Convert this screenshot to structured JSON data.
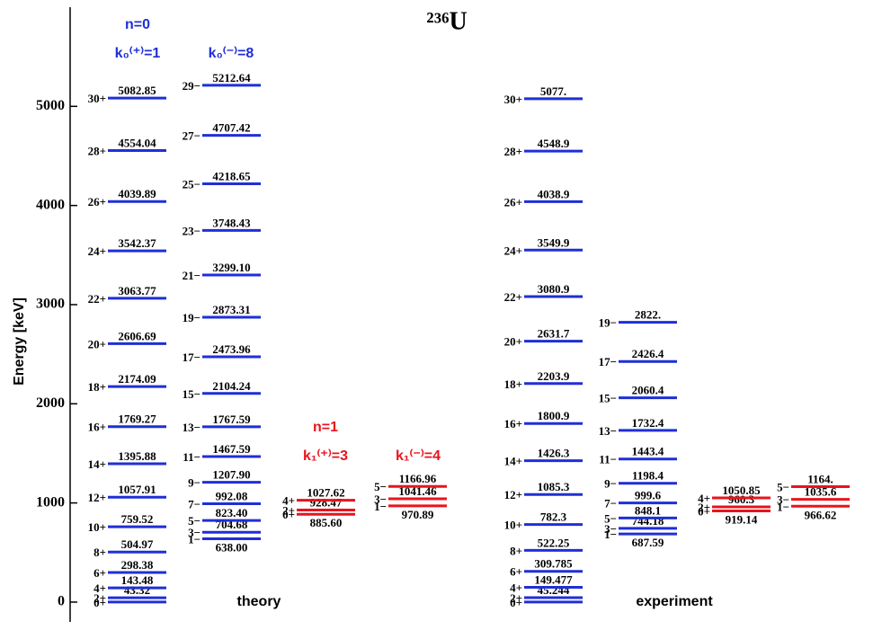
{
  "chart_data": {
    "type": "level-scheme",
    "title": "²³⁶U",
    "ylabel": "Energy [keV]",
    "ylim": [
      -200,
      6000
    ],
    "yticks": [
      0,
      1000,
      2000,
      3000,
      4000,
      5000
    ],
    "annotations": [
      "n=0",
      "k₀⁽⁺⁾=1",
      "k₀⁽⁻⁾=8",
      "n=1",
      "k₁⁽⁺⁾=3",
      "k₁⁽⁻⁾=4",
      "theory",
      "experiment"
    ],
    "bands": [
      {
        "color": "#1f2fd6",
        "spins": [
          "0+",
          "2+",
          "4+",
          "6+",
          "8+",
          "10+",
          "12+",
          "14+",
          "16+",
          "18+",
          "20+",
          "22+",
          "24+",
          "26+",
          "28+",
          "30+"
        ],
        "values": [
          0,
          43.32,
          143.48,
          298.38,
          504.97,
          759.52,
          1057.91,
          1395.88,
          1769.27,
          2174.09,
          2606.69,
          3063.77,
          3542.37,
          4039.89,
          4554.04,
          5082.85
        ],
        "value_labels": [
          null,
          "43.32",
          "143.48",
          "298.38",
          "504.97",
          "759.52",
          "1057.91",
          "1395.88",
          "1769.27",
          "2174.09",
          "2606.69",
          "3063.77",
          "3542.37",
          "4039.89",
          "4554.04",
          "5082.85"
        ]
      },
      {
        "color": "#1f2fd6",
        "spins": [
          "1−",
          "3−",
          "5−",
          "7−",
          "9−",
          "11−",
          "13−",
          "15−",
          "17−",
          "19−",
          "21−",
          "23−",
          "25−",
          "27−",
          "29−"
        ],
        "values": [
          638.0,
          704.68,
          823.4,
          992.08,
          1207.9,
          1467.59,
          1767.59,
          2104.24,
          2473.96,
          2873.31,
          3299.1,
          3748.43,
          4218.65,
          4707.42,
          5212.64
        ],
        "value_labels": [
          "638.00",
          "704.68",
          "823.40",
          "992.08",
          "1207.90",
          "1467.59",
          "1767.59",
          "2104.24",
          "2473.96",
          "2873.31",
          "3299.10",
          "3748.43",
          "4218.65",
          "4707.42",
          "5212.64"
        ]
      },
      {
        "color": "#e8141c",
        "spins": [
          "0+",
          "2+",
          "4+"
        ],
        "values": [
          885.6,
          928.47,
          1027.62
        ],
        "value_labels": [
          "885.60",
          "928.47",
          "1027.62"
        ]
      },
      {
        "color": "#e8141c",
        "spins": [
          "1−",
          "3−",
          "5−"
        ],
        "values": [
          970.89,
          1041.46,
          1166.96
        ],
        "value_labels": [
          "970.89",
          "1041.46",
          "1166.96"
        ]
      },
      {
        "color": "#1f2fd6",
        "spins": [
          "0+",
          "2+",
          "4+",
          "6+",
          "8+",
          "10+",
          "12+",
          "14+",
          "16+",
          "18+",
          "20+",
          "22+",
          "24+",
          "26+",
          "28+",
          "30+"
        ],
        "values": [
          0,
          45.244,
          149.477,
          309.785,
          522.25,
          782.3,
          1085.3,
          1426.3,
          1800.9,
          2203.9,
          2631.7,
          3080.9,
          3549.9,
          4038.9,
          4548.9,
          5077
        ],
        "value_labels": [
          null,
          "45.244",
          "149.477",
          "309.785",
          "522.25",
          "782.3",
          "1085.3",
          "1426.3",
          "1800.9",
          "2203.9",
          "2631.7",
          "3080.9",
          "3549.9",
          "4038.9",
          "4548.9",
          "5077."
        ]
      },
      {
        "color": "#1f2fd6",
        "spins": [
          "1−",
          "3−",
          "5−",
          "7−",
          "9−",
          "11−",
          "13−",
          "15−",
          "17−",
          "19−"
        ],
        "values": [
          687.59,
          744.18,
          848.1,
          999.6,
          1198.4,
          1443.4,
          1732.4,
          2060.4,
          2426.4,
          2822
        ],
        "value_labels": [
          "687.59",
          "744.18",
          "848.1",
          "999.6",
          "1198.4",
          "1443.4",
          "1732.4",
          "2060.4",
          "2426.4",
          "2822."
        ]
      },
      {
        "color": "#e8141c",
        "spins": [
          "0+",
          "2+",
          "4+"
        ],
        "values": [
          919.14,
          960.3,
          1050.85
        ],
        "value_labels": [
          "919.14",
          "960.3",
          "1050.85"
        ]
      },
      {
        "color": "#e8141c",
        "spins": [
          "1−",
          "3−",
          "5−"
        ],
        "values": [
          966.62,
          1035.6,
          1164
        ],
        "value_labels": [
          "966.62",
          "1035.6",
          "1164."
        ]
      }
    ]
  }
}
